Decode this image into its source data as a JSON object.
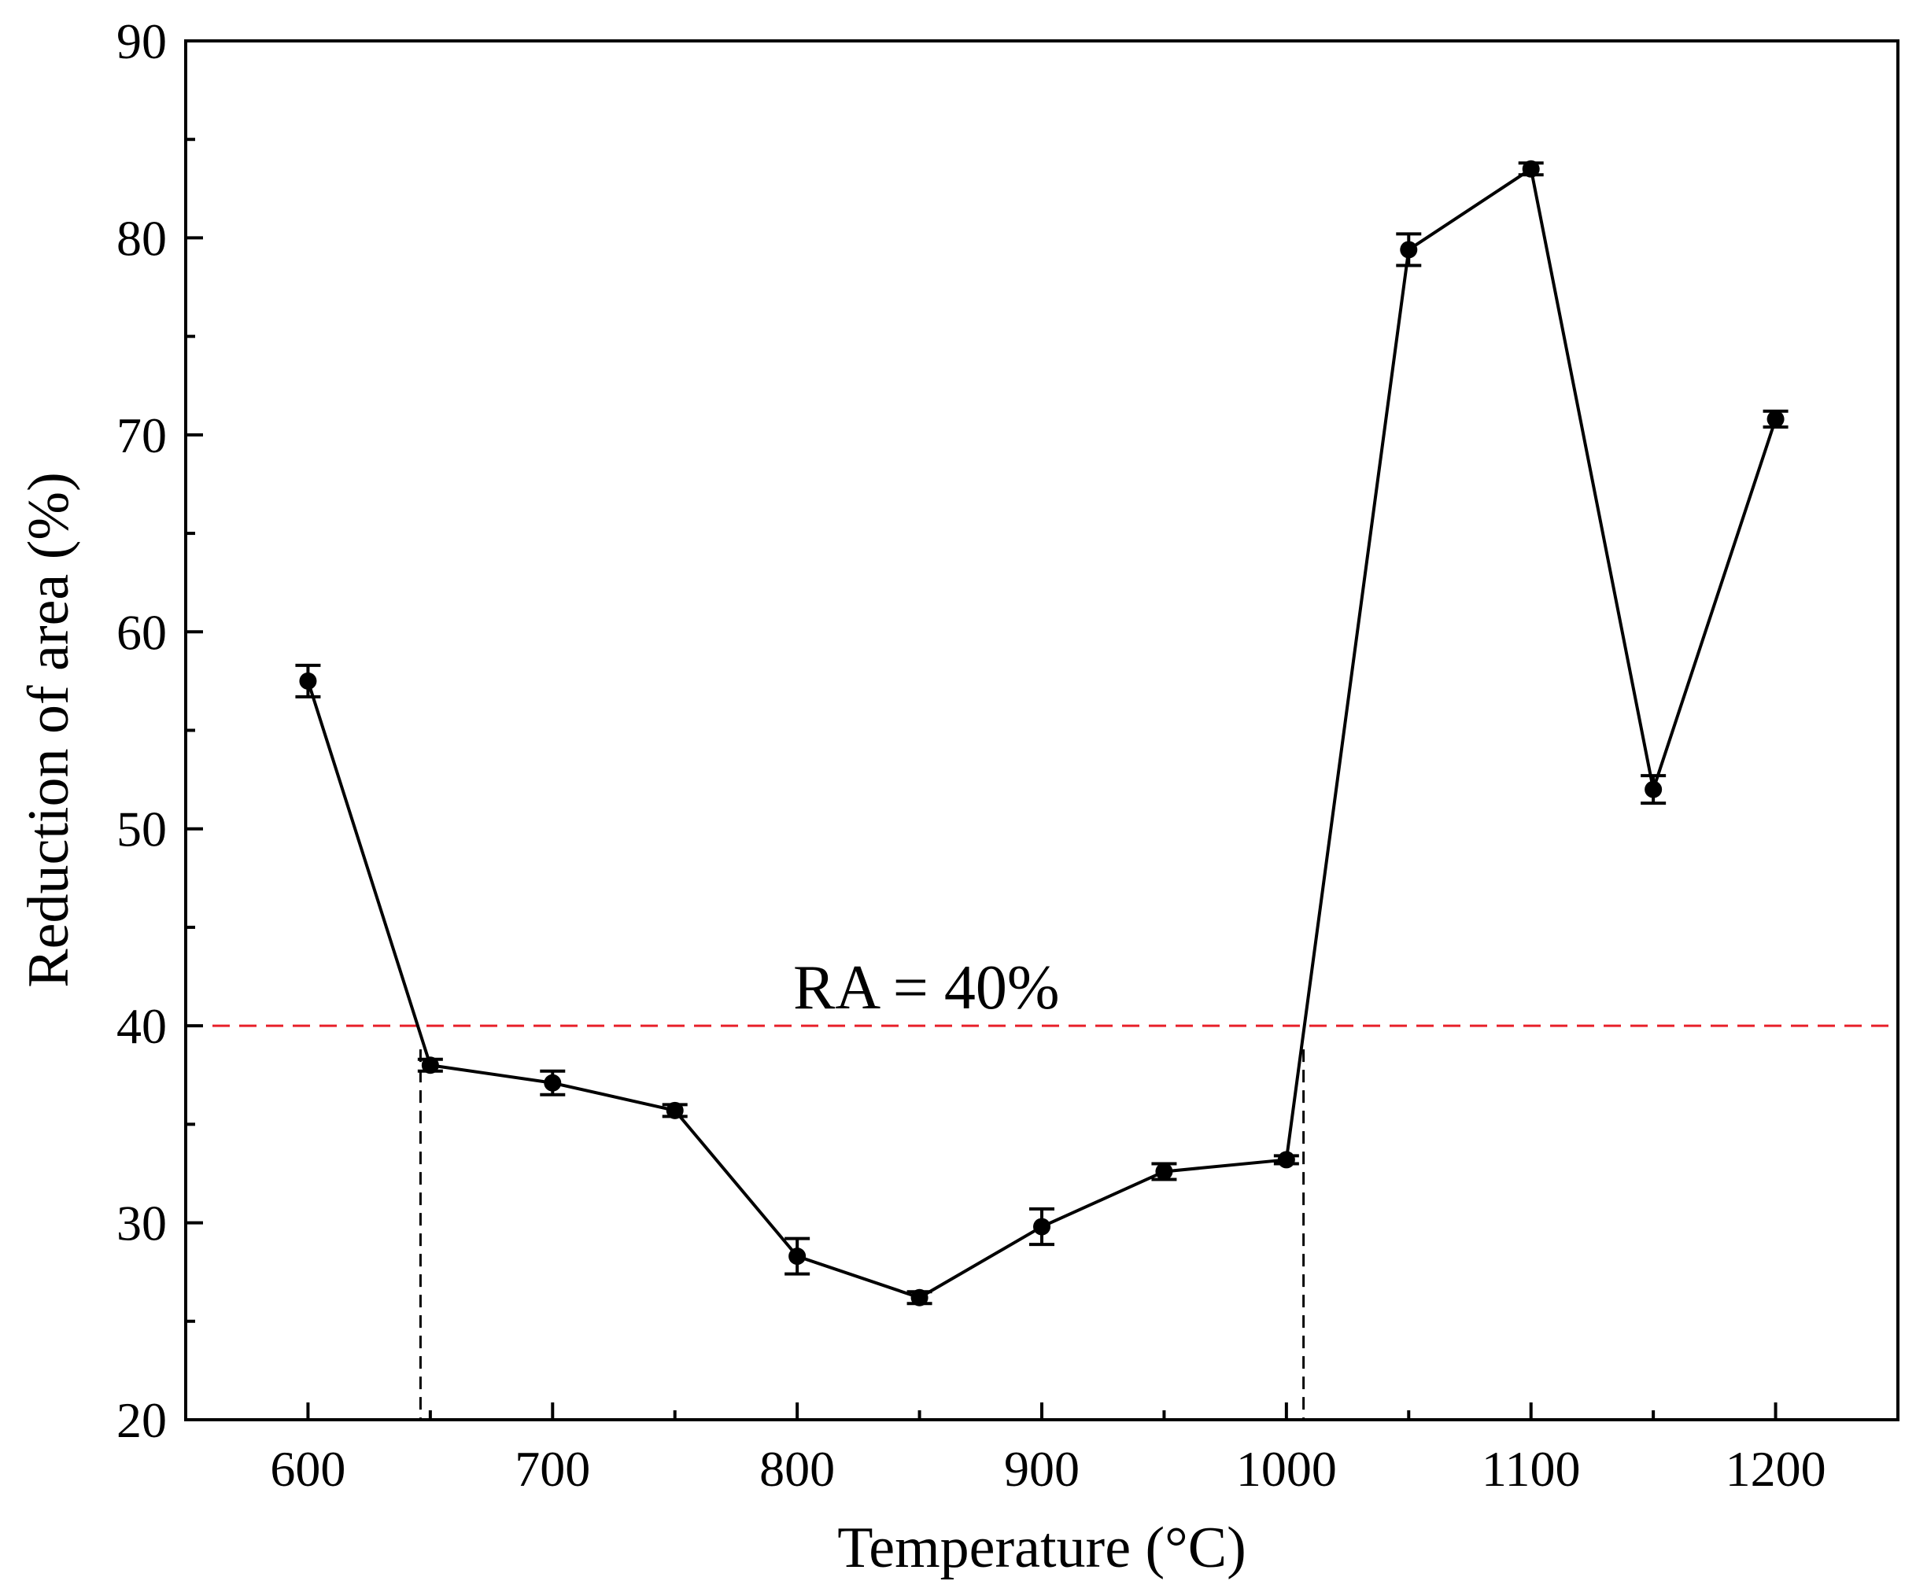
{
  "chart_data": {
    "type": "line",
    "title": "",
    "xlabel": "Temperature (°C)",
    "ylabel": "Reduction of area (%)",
    "xlim": [
      550,
      1250
    ],
    "ylim": [
      20,
      90
    ],
    "x_ticks": [
      600,
      700,
      800,
      900,
      1000,
      1100,
      1200
    ],
    "x_minor_ticks": [
      650,
      750,
      850,
      950,
      1050,
      1150
    ],
    "y_ticks": [
      20,
      30,
      40,
      50,
      60,
      70,
      80,
      90
    ],
    "y_minor_ticks": [
      25,
      35,
      45,
      55,
      65,
      75,
      85
    ],
    "grid": false,
    "series": [
      {
        "name": "Reduction of area",
        "color": "#000000",
        "x": [
          600,
          650,
          700,
          750,
          800,
          850,
          900,
          950,
          1000,
          1050,
          1100,
          1150,
          1200
        ],
        "y": [
          57.5,
          38.0,
          37.1,
          35.7,
          28.3,
          26.2,
          29.8,
          32.6,
          33.2,
          79.4,
          83.5,
          52.0,
          70.8
        ],
        "error": [
          0.8,
          0.3,
          0.6,
          0.3,
          0.9,
          0.3,
          0.9,
          0.4,
          0.2,
          0.8,
          0.3,
          0.7,
          0.4
        ]
      }
    ],
    "reference_line": {
      "y": 40,
      "label": "RA = 40%",
      "color": "#e8202a"
    },
    "drop_lines": [
      646,
      1007
    ]
  }
}
